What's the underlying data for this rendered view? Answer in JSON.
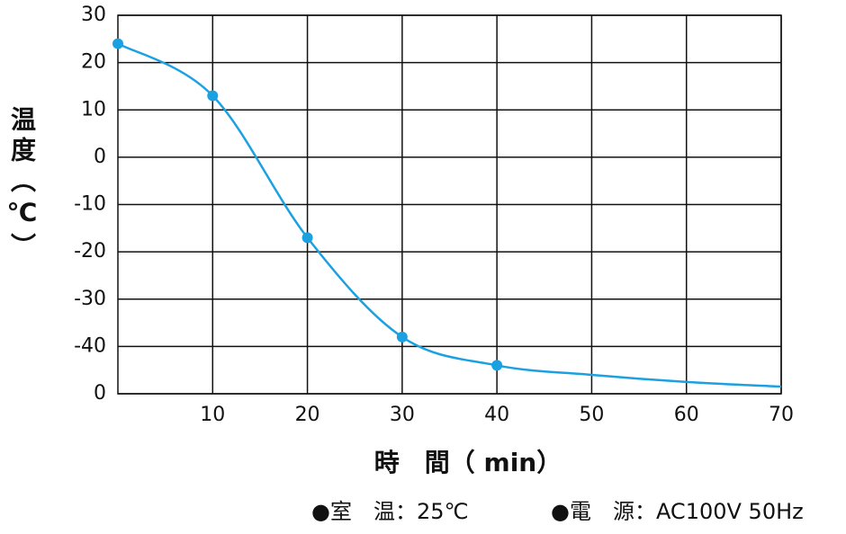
{
  "chart_data": {
    "type": "line",
    "y_label": "温度（℃）",
    "x_label": "時　間（ min）",
    "notes": [
      "●室　温：25℃",
      "●電　源：AC100V 50Hz"
    ],
    "x": [
      0,
      10,
      20,
      30,
      40,
      50,
      60,
      70
    ],
    "series": [
      {
        "name": "temperature",
        "color": "#1ba1e2",
        "values": [
          24,
          13,
          -17,
          -38,
          -44,
          -46,
          -47.5,
          -48.5
        ],
        "markers": [
          true,
          true,
          true,
          true,
          true,
          false,
          false,
          false
        ]
      }
    ],
    "xlim": [
      0,
      70
    ],
    "xticks": [
      10,
      20,
      30,
      40,
      50,
      60,
      70
    ],
    "ylim": [
      -50,
      30
    ],
    "yticks": [
      {
        "value": -50,
        "label": "0"
      },
      -40,
      -30,
      -20,
      -10,
      0,
      10,
      20,
      30
    ],
    "grid": true
  }
}
